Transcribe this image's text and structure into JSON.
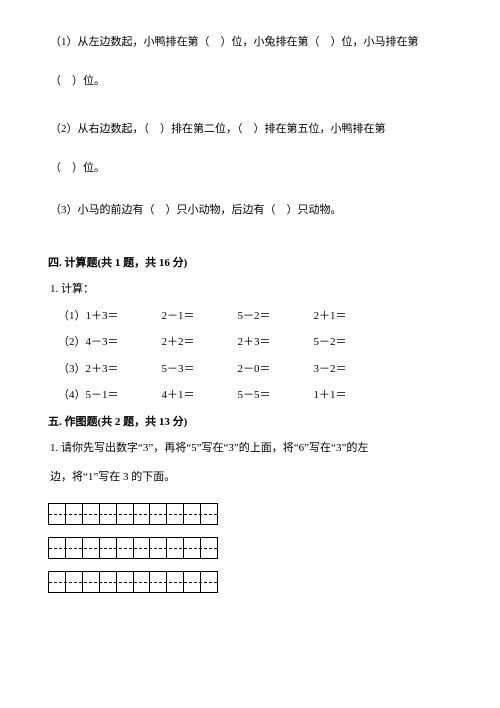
{
  "q1": {
    "line1": "（1）从左边数起，小鸭排在第（　）位，小兔排在第（　）位，小马排在第",
    "line2": "（　）位。"
  },
  "q2": {
    "line1": "（2）从右边数起，（　）排在第二位，（　）排在第五位，小鸭排在第",
    "line2": "（　）位。"
  },
  "q3": {
    "line1": "（3）小马的前边有（　）只小动物，后边有（　）只动物。"
  },
  "section4": {
    "title": "四. 计算题(共 1 题，共 16 分)",
    "lead": "1. 计算：",
    "rows": [
      {
        "label": "（1）",
        "items": [
          "1＋3＝",
          "2－1＝",
          "5－2＝",
          "2＋1＝"
        ]
      },
      {
        "label": "（2）",
        "items": [
          "4－3＝",
          "2＋2＝",
          "2＋3＝",
          "5－2＝"
        ]
      },
      {
        "label": "（3）",
        "items": [
          "2＋3＝",
          "5－3＝",
          "2－0＝",
          "3－2＝"
        ]
      },
      {
        "label": "（4）",
        "items": [
          "5－1＝",
          "4＋1＝",
          "5－5＝",
          "1＋1＝"
        ]
      }
    ]
  },
  "section5": {
    "title": "五. 作图题(共 2 题，共 13 分)",
    "line1": "1. 请你先写出数字“3”，再将“5”写在“3”的上面，将“6”写在“3”的左",
    "line2": "边，将“1”写在 3 的下面。"
  },
  "grid": {
    "cells": 10,
    "rows": 3
  }
}
